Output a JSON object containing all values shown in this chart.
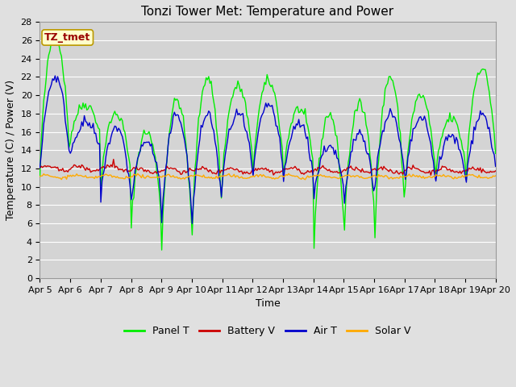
{
  "title": "Tonzi Tower Met: Temperature and Power",
  "xlabel": "Time",
  "ylabel": "Temperature (C) / Power (V)",
  "ylim": [
    0,
    28
  ],
  "yticks": [
    0,
    2,
    4,
    6,
    8,
    10,
    12,
    14,
    16,
    18,
    20,
    22,
    24,
    26,
    28
  ],
  "xtick_labels": [
    "Apr 5",
    "Apr 6",
    "Apr 7",
    "Apr 8",
    "Apr 9",
    "Apr 10",
    "Apr 11",
    "Apr 12",
    "Apr 13",
    "Apr 14",
    "Apr 15",
    "Apr 16",
    "Apr 17",
    "Apr 18",
    "Apr 19",
    "Apr 20"
  ],
  "legend_entries": [
    "Panel T",
    "Battery V",
    "Air T",
    "Solar V"
  ],
  "legend_colors": [
    "#00ee00",
    "#cc0000",
    "#0000cc",
    "#ffaa00"
  ],
  "line_colors": [
    "#00ee00",
    "#cc0000",
    "#0000cc",
    "#ffaa00"
  ],
  "annotation_text": "TZ_tmet",
  "annotation_box_color": "#ffffcc",
  "annotation_text_color": "#990000",
  "background_color": "#e0e0e0",
  "plot_bg_color": "#d4d4d4",
  "grid_color": "#ffffff",
  "title_fontsize": 11,
  "axis_fontsize": 9,
  "tick_fontsize": 8,
  "legend_fontsize": 9
}
